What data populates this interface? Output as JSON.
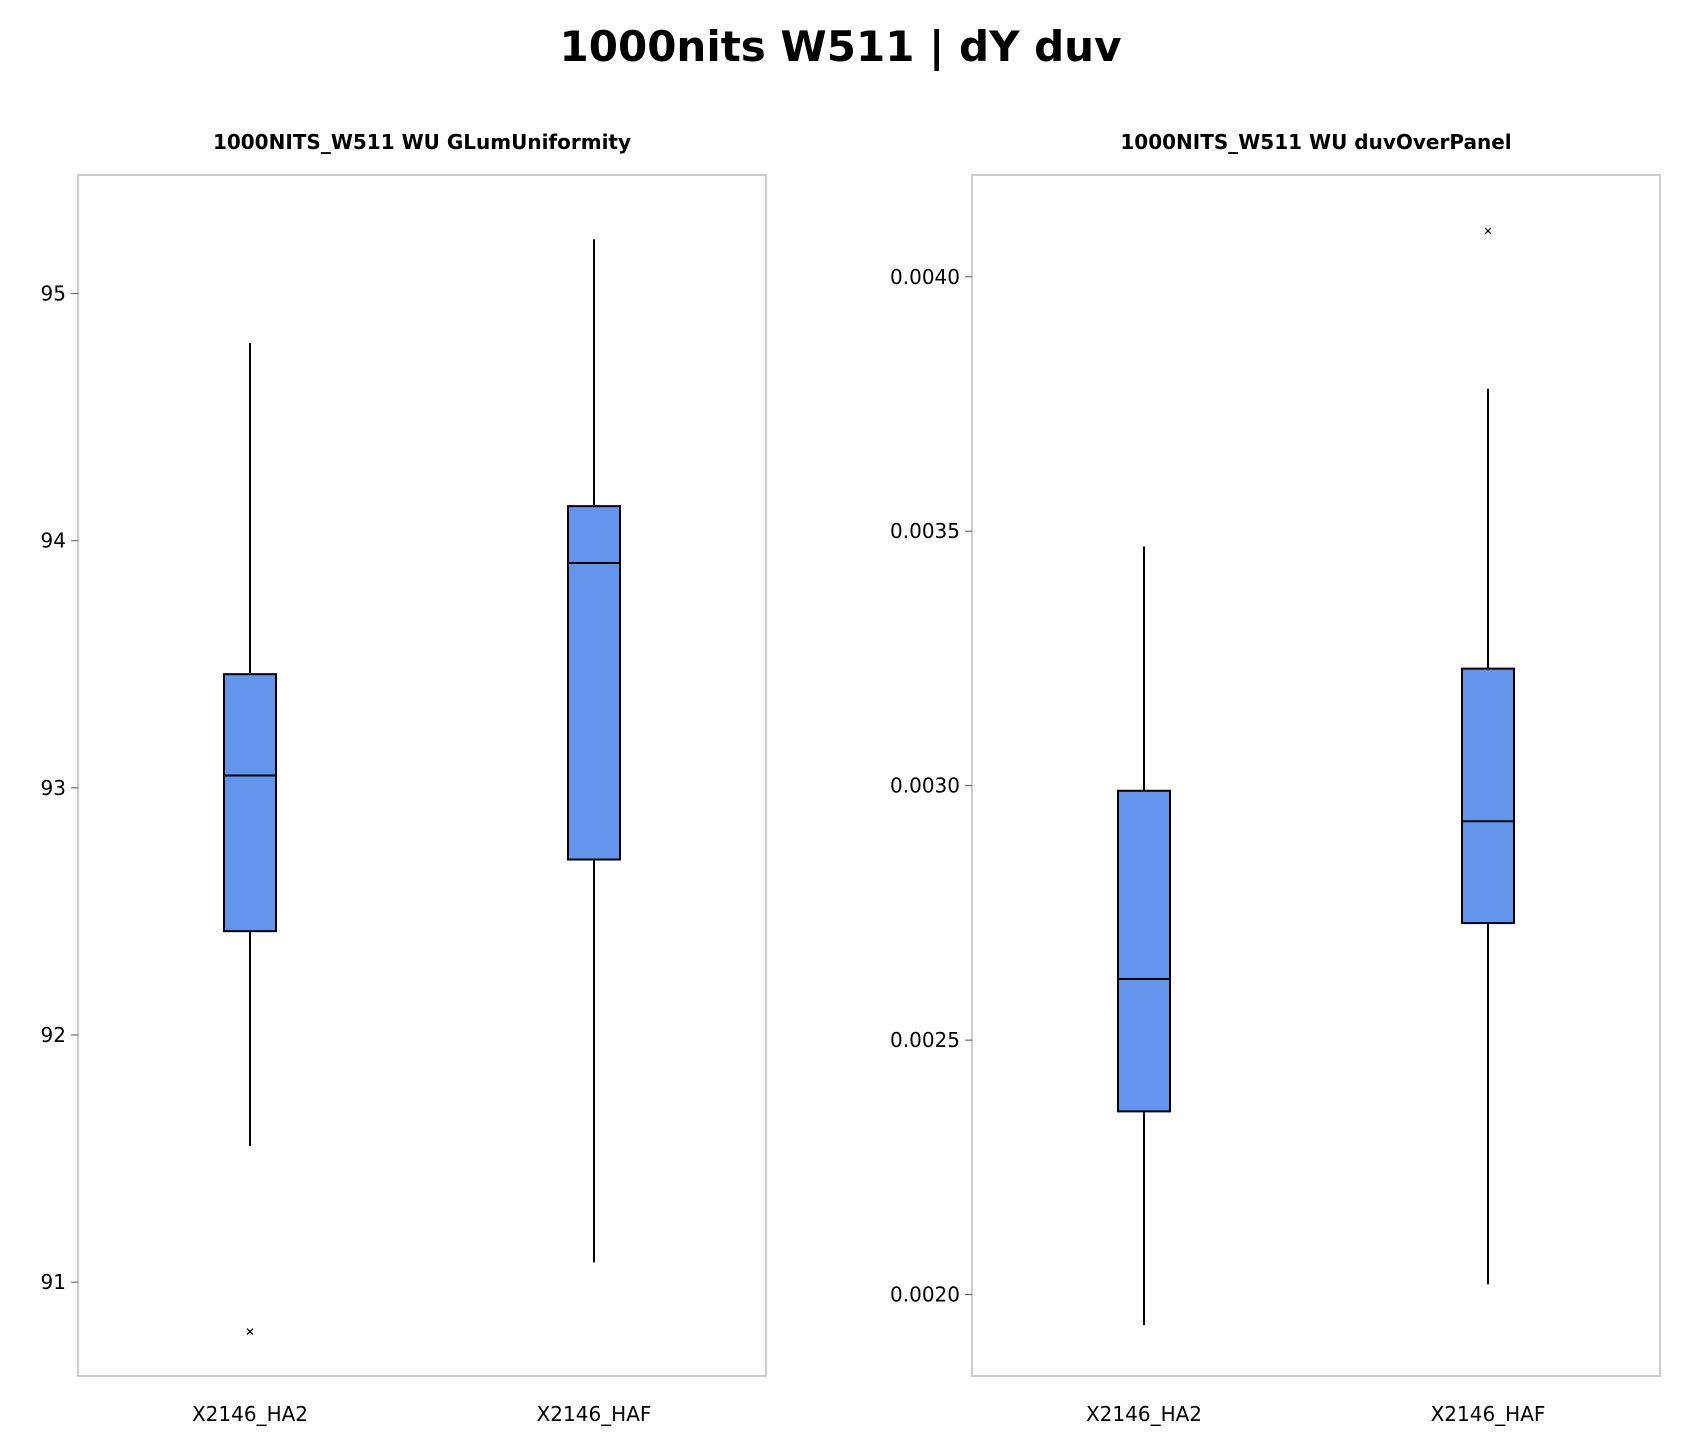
{
  "title": "1000nits W511 | dY duv",
  "colors": {
    "box_fill": "#6495ED",
    "frame": "#cccccc",
    "line": "#000000"
  },
  "chart_data": [
    {
      "type": "box",
      "title": "1000NITS_W511 WU GLumUniformity",
      "xlabel": "",
      "ylabel": "",
      "ylim": [
        90.62,
        95.48
      ],
      "yticks": [
        91,
        92,
        93,
        94,
        95
      ],
      "ytick_labels": [
        "91",
        "92",
        "93",
        "94",
        "95"
      ],
      "grid": false,
      "categories": [
        "X2146_HA2",
        "X2146_HAF"
      ],
      "boxes": [
        {
          "category": "X2146_HA2",
          "whisker_low": 91.55,
          "q1": 92.42,
          "median": 93.05,
          "q3": 93.46,
          "whisker_high": 94.8,
          "outliers": [
            90.8
          ]
        },
        {
          "category": "X2146_HAF",
          "whisker_low": 91.08,
          "q1": 92.71,
          "median": 93.91,
          "q3": 94.14,
          "whisker_high": 95.22,
          "outliers": []
        }
      ]
    },
    {
      "type": "box",
      "title": "1000NITS_W511 WU duvOverPanel",
      "xlabel": "",
      "ylabel": "",
      "ylim": [
        0.00184,
        0.0042
      ],
      "yticks": [
        0.002,
        0.0025,
        0.003,
        0.0035,
        0.004
      ],
      "ytick_labels": [
        "0.0020",
        "0.0025",
        "0.0030",
        "0.0035",
        "0.0040"
      ],
      "grid": false,
      "categories": [
        "X2146_HA2",
        "X2146_HAF"
      ],
      "boxes": [
        {
          "category": "X2146_HA2",
          "whisker_low": 0.00194,
          "q1": 0.00236,
          "median": 0.00262,
          "q3": 0.00299,
          "whisker_high": 0.00347,
          "outliers": []
        },
        {
          "category": "X2146_HAF",
          "whisker_low": 0.00202,
          "q1": 0.00273,
          "median": 0.00293,
          "q3": 0.00323,
          "whisker_high": 0.00378,
          "outliers": [
            0.00409
          ]
        }
      ]
    }
  ]
}
